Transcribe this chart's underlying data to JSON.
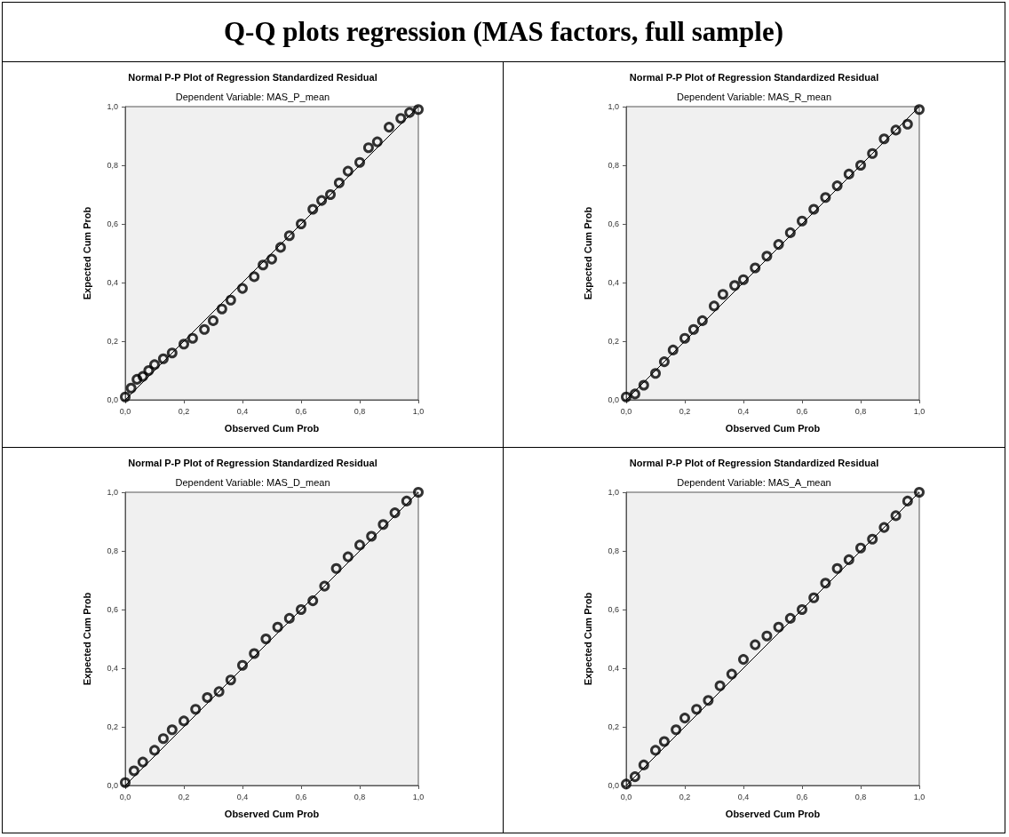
{
  "chart_data": [
    {
      "type": "scatter",
      "title": "Normal P-P Plot of Regression Standardized Residual",
      "subtitle": "Dependent Variable: MAS_P_mean",
      "xlabel": "Observed Cum Prob",
      "ylabel": "Expected Cum Prob",
      "annotations": [
        "Q-Q plots regression (MAS factors, full sample)"
      ],
      "xlim": [
        0,
        1
      ],
      "ylim": [
        0,
        1
      ],
      "xticks": [
        {
          "value": 0,
          "label": "0,0"
        },
        {
          "value": 0.2,
          "label": "0,2"
        },
        {
          "value": 0.4,
          "label": "0,4"
        },
        {
          "value": 0.6,
          "label": "0,6"
        },
        {
          "value": 0.8,
          "label": "0,8"
        },
        {
          "value": 1,
          "label": "1,0"
        }
      ],
      "yticks": [
        {
          "value": 0,
          "label": "0,0"
        },
        {
          "value": 0.2,
          "label": "0,2"
        },
        {
          "value": 0.4,
          "label": "0,4"
        },
        {
          "value": 0.6,
          "label": "0,6"
        },
        {
          "value": 0.8,
          "label": "0,8"
        },
        {
          "value": 1,
          "label": "1,0"
        }
      ],
      "marker": "circle",
      "grid": false,
      "series": [
        {
          "color": "#000000",
          "x": [
            0,
            0.02,
            0.04,
            0.06,
            0.08,
            0.1,
            0.13,
            0.16,
            0.2,
            0.23,
            0.27,
            0.3,
            0.33,
            0.36,
            0.4,
            0.44,
            0.47,
            0.5,
            0.53,
            0.56,
            0.6,
            0.64,
            0.67,
            0.7,
            0.73,
            0.76,
            0.8,
            0.83,
            0.86,
            0.9,
            0.94,
            0.97,
            1
          ],
          "values": [
            0.01,
            0.04,
            0.07,
            0.08,
            0.1,
            0.12,
            0.14,
            0.16,
            0.19,
            0.21,
            0.24,
            0.27,
            0.31,
            0.34,
            0.38,
            0.42,
            0.46,
            0.48,
            0.52,
            0.56,
            0.6,
            0.65,
            0.68,
            0.7,
            0.74,
            0.78,
            0.81,
            0.86,
            0.88,
            0.93,
            0.96,
            0.98,
            0.99
          ]
        },
        {
          "type": "line",
          "color": "#000000",
          "marker": "none",
          "x": [
            0,
            1
          ],
          "values": [
            0,
            1
          ]
        }
      ]
    },
    {
      "type": "scatter",
      "title": "Normal P-P Plot of Regression Standardized Residual",
      "subtitle": "Dependent Variable: MAS_R_mean",
      "xlabel": "Observed Cum Prob",
      "ylabel": "Expected Cum Prob",
      "xlim": [
        0,
        1
      ],
      "ylim": [
        0,
        1
      ],
      "xticks": [
        {
          "value": 0,
          "label": "0,0"
        },
        {
          "value": 0.2,
          "label": "0,2"
        },
        {
          "value": 0.4,
          "label": "0,4"
        },
        {
          "value": 0.6,
          "label": "0,6"
        },
        {
          "value": 0.8,
          "label": "0,8"
        },
        {
          "value": 1,
          "label": "1,0"
        }
      ],
      "yticks": [
        {
          "value": 0,
          "label": "0,0"
        },
        {
          "value": 0.2,
          "label": "0,2"
        },
        {
          "value": 0.4,
          "label": "0,4"
        },
        {
          "value": 0.6,
          "label": "0,6"
        },
        {
          "value": 0.8,
          "label": "0,8"
        },
        {
          "value": 1,
          "label": "1,0"
        }
      ],
      "marker": "circle",
      "grid": false,
      "series": [
        {
          "color": "#000000",
          "x": [
            0,
            0.03,
            0.06,
            0.1,
            0.13,
            0.16,
            0.2,
            0.23,
            0.26,
            0.3,
            0.33,
            0.37,
            0.4,
            0.44,
            0.48,
            0.52,
            0.56,
            0.6,
            0.64,
            0.68,
            0.72,
            0.76,
            0.8,
            0.84,
            0.88,
            0.92,
            0.96,
            1
          ],
          "values": [
            0.01,
            0.02,
            0.05,
            0.09,
            0.13,
            0.17,
            0.21,
            0.24,
            0.27,
            0.32,
            0.36,
            0.39,
            0.41,
            0.45,
            0.49,
            0.53,
            0.57,
            0.61,
            0.65,
            0.69,
            0.73,
            0.77,
            0.8,
            0.84,
            0.89,
            0.92,
            0.94,
            0.99
          ]
        },
        {
          "type": "line",
          "color": "#000000",
          "marker": "none",
          "x": [
            0,
            1
          ],
          "values": [
            0,
            1
          ]
        }
      ]
    },
    {
      "type": "scatter",
      "title": "Normal P-P Plot of Regression Standardized Residual",
      "subtitle": "Dependent Variable: MAS_D_mean",
      "xlabel": "Observed Cum Prob",
      "ylabel": "Expected Cum Prob",
      "xlim": [
        0,
        1
      ],
      "ylim": [
        0,
        1
      ],
      "xticks": [
        {
          "value": 0,
          "label": "0,0"
        },
        {
          "value": 0.2,
          "label": "0,2"
        },
        {
          "value": 0.4,
          "label": "0,4"
        },
        {
          "value": 0.6,
          "label": "0,6"
        },
        {
          "value": 0.8,
          "label": "0,8"
        },
        {
          "value": 1,
          "label": "1,0"
        }
      ],
      "yticks": [
        {
          "value": 0,
          "label": "0,0"
        },
        {
          "value": 0.2,
          "label": "0,2"
        },
        {
          "value": 0.4,
          "label": "0,4"
        },
        {
          "value": 0.6,
          "label": "0,6"
        },
        {
          "value": 0.8,
          "label": "0,8"
        },
        {
          "value": 1,
          "label": "1,0"
        }
      ],
      "marker": "circle",
      "grid": false,
      "series": [
        {
          "color": "#000000",
          "x": [
            0,
            0.03,
            0.06,
            0.1,
            0.13,
            0.16,
            0.2,
            0.24,
            0.28,
            0.32,
            0.36,
            0.4,
            0.44,
            0.48,
            0.52,
            0.56,
            0.6,
            0.64,
            0.68,
            0.72,
            0.76,
            0.8,
            0.84,
            0.88,
            0.92,
            0.96,
            1
          ],
          "values": [
            0.01,
            0.05,
            0.08,
            0.12,
            0.16,
            0.19,
            0.22,
            0.26,
            0.3,
            0.32,
            0.36,
            0.41,
            0.45,
            0.5,
            0.54,
            0.57,
            0.6,
            0.63,
            0.68,
            0.74,
            0.78,
            0.82,
            0.85,
            0.89,
            0.93,
            0.97,
            1
          ]
        },
        {
          "type": "line",
          "color": "#000000",
          "marker": "none",
          "x": [
            0,
            1
          ],
          "values": [
            0,
            1
          ]
        }
      ]
    },
    {
      "type": "scatter",
      "title": "Normal P-P Plot of Regression Standardized Residual",
      "subtitle": "Dependent Variable: MAS_A_mean",
      "xlabel": "Observed Cum Prob",
      "ylabel": "Expected Cum Prob",
      "xlim": [
        0,
        1
      ],
      "ylim": [
        0,
        1
      ],
      "xticks": [
        {
          "value": 0,
          "label": "0,0"
        },
        {
          "value": 0.2,
          "label": "0,2"
        },
        {
          "value": 0.4,
          "label": "0,4"
        },
        {
          "value": 0.6,
          "label": "0,6"
        },
        {
          "value": 0.8,
          "label": "0,8"
        },
        {
          "value": 1,
          "label": "1,0"
        }
      ],
      "yticks": [
        {
          "value": 0,
          "label": "0,0"
        },
        {
          "value": 0.2,
          "label": "0,2"
        },
        {
          "value": 0.4,
          "label": "0,4"
        },
        {
          "value": 0.6,
          "label": "0,6"
        },
        {
          "value": 0.8,
          "label": "0,8"
        },
        {
          "value": 1,
          "label": "1,0"
        }
      ],
      "marker": "circle",
      "grid": false,
      "series": [
        {
          "color": "#000000",
          "x": [
            0,
            0.03,
            0.06,
            0.1,
            0.13,
            0.17,
            0.2,
            0.24,
            0.28,
            0.32,
            0.36,
            0.4,
            0.44,
            0.48,
            0.52,
            0.56,
            0.6,
            0.64,
            0.68,
            0.72,
            0.76,
            0.8,
            0.84,
            0.88,
            0.92,
            0.96,
            1
          ],
          "values": [
            0.005,
            0.03,
            0.07,
            0.12,
            0.15,
            0.19,
            0.23,
            0.26,
            0.29,
            0.34,
            0.38,
            0.43,
            0.48,
            0.51,
            0.54,
            0.57,
            0.6,
            0.64,
            0.69,
            0.74,
            0.77,
            0.81,
            0.84,
            0.88,
            0.92,
            0.97,
            1
          ]
        },
        {
          "type": "line",
          "color": "#000000",
          "marker": "none",
          "x": [
            0,
            1
          ],
          "values": [
            0,
            1
          ]
        }
      ]
    }
  ]
}
